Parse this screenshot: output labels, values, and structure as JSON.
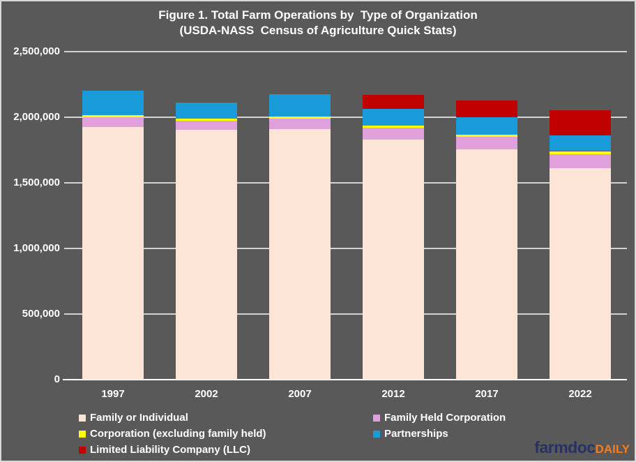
{
  "title": {
    "line1": "Figure 1. Total Farm Operations by  Type of Organization",
    "line2": "(USDA-NASS  Census of Agriculture Quick Stats)"
  },
  "chart_data": {
    "type": "bar",
    "stacked": true,
    "title": "Figure 1. Total Farm Operations by Type of Organization (USDA-NASS Census of Agriculture Quick Stats)",
    "categories": [
      "1997",
      "2002",
      "2007",
      "2012",
      "2017",
      "2022"
    ],
    "series": [
      {
        "name": "Family or Individual",
        "color": "#fce4d6",
        "values": [
          1925000,
          1905000,
          1908000,
          1830000,
          1755000,
          1610000
        ]
      },
      {
        "name": "Family Held Corporation",
        "color": "#e0a0dc",
        "values": [
          75000,
          66000,
          82000,
          91000,
          95000,
          107000
        ]
      },
      {
        "name": "Corporation (excluding family held)",
        "color": "#ffff00",
        "values": [
          15000,
          16000,
          14000,
          16000,
          15000,
          25000
        ]
      },
      {
        "name": "Partnerships",
        "color": "#189bd8",
        "values": [
          187000,
          123000,
          172000,
          128000,
          135000,
          122000
        ]
      },
      {
        "name": "Limited Liability Company (LLC)",
        "color": "#c00000",
        "values": [
          0,
          0,
          0,
          105000,
          130000,
          187000
        ]
      }
    ],
    "totals": [
      2202000,
      2110000,
      2176000,
      2170000,
      2130000,
      2051000
    ],
    "ylim": [
      0,
      2500000
    ],
    "yticks": [
      {
        "value": 0,
        "label": "0"
      },
      {
        "value": 500000,
        "label": "500,000"
      },
      {
        "value": 1000000,
        "label": "1,000,000"
      },
      {
        "value": 1500000,
        "label": "1,500,000"
      },
      {
        "value": 2000000,
        "label": "2,000,000"
      },
      {
        "value": 2500000,
        "label": "2,500,000"
      }
    ],
    "grid": true,
    "legend_position": "bottom"
  },
  "legend": {
    "col1": [
      {
        "label": "Family or Individual",
        "color": "#fce4d6"
      },
      {
        "label": "Corporation (excluding family held)",
        "color": "#ffff00"
      },
      {
        "label": "Limited Liability Company (LLC)",
        "color": "#c00000"
      }
    ],
    "col2": [
      {
        "label": "Family Held Corporation",
        "color": "#e0a0dc"
      },
      {
        "label": "Partnerships",
        "color": "#189bd8"
      }
    ]
  },
  "logo": {
    "brand": "farmdoc",
    "suffix": "DAILY",
    "brand_color": "#283163",
    "suffix_color": "#f47d20"
  },
  "colors": {
    "background": "#595959",
    "text": "#ffffff",
    "gridline": "#d3d3d3",
    "axis_line": "#ffffff",
    "border": "#d9d9d9"
  }
}
